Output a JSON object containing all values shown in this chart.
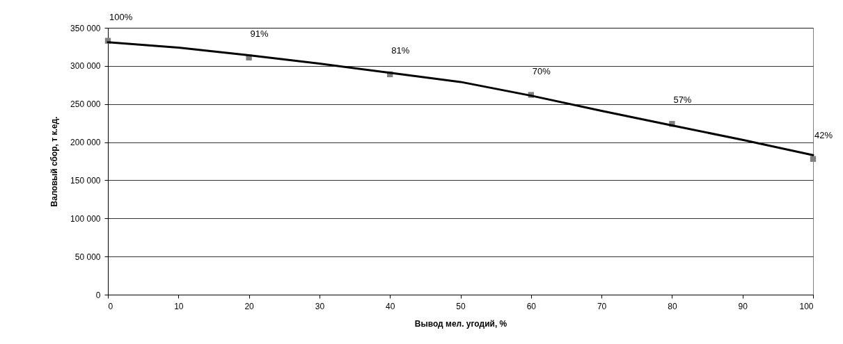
{
  "chart_data": {
    "type": "scatter",
    "xlabel": "Вывод мел. угодий, %",
    "ylabel": "Валовый сбор, т к.ед.",
    "x": [
      0,
      20,
      40,
      60,
      80,
      100
    ],
    "series": [
      {
        "color": "#808080",
        "marker": "square",
        "values": [
          333000,
          311000,
          289000,
          262000,
          224000,
          178000
        ]
      },
      {
        "type": "line",
        "color": "#000000",
        "line_style": "solid",
        "x": [
          0,
          10,
          20,
          30,
          40,
          50,
          60,
          70,
          80,
          90,
          100
        ],
        "values": [
          331000,
          324000,
          314000,
          303000,
          291000,
          279000,
          261000,
          241000,
          222000,
          203000,
          183000
        ]
      }
    ],
    "annotations": [
      {
        "text": "100%",
        "x": 0,
        "y": 333000
      },
      {
        "text": "91%",
        "x": 20,
        "y": 311000
      },
      {
        "text": "81%",
        "x": 40,
        "y": 289000
      },
      {
        "text": "70%",
        "x": 60,
        "y": 262000
      },
      {
        "text": "57%",
        "x": 80,
        "y": 224000
      },
      {
        "text": "42%",
        "x": 100,
        "y": 178000
      }
    ],
    "xlim": [
      0,
      100
    ],
    "xticks": [
      0,
      10,
      20,
      30,
      40,
      50,
      60,
      70,
      80,
      90,
      100
    ],
    "ylim": [
      0,
      350000
    ],
    "yticks": [
      {
        "value": 0,
        "label": "0"
      },
      {
        "value": 50000,
        "label": "50 000"
      },
      {
        "value": 100000,
        "label": "100 000"
      },
      {
        "value": 150000,
        "label": "150 000"
      },
      {
        "value": 200000,
        "label": "200 000"
      },
      {
        "value": 250000,
        "label": "250 000"
      },
      {
        "value": 300000,
        "label": "300 000"
      },
      {
        "value": 350000,
        "label": "350 000"
      }
    ],
    "grid": "y"
  }
}
